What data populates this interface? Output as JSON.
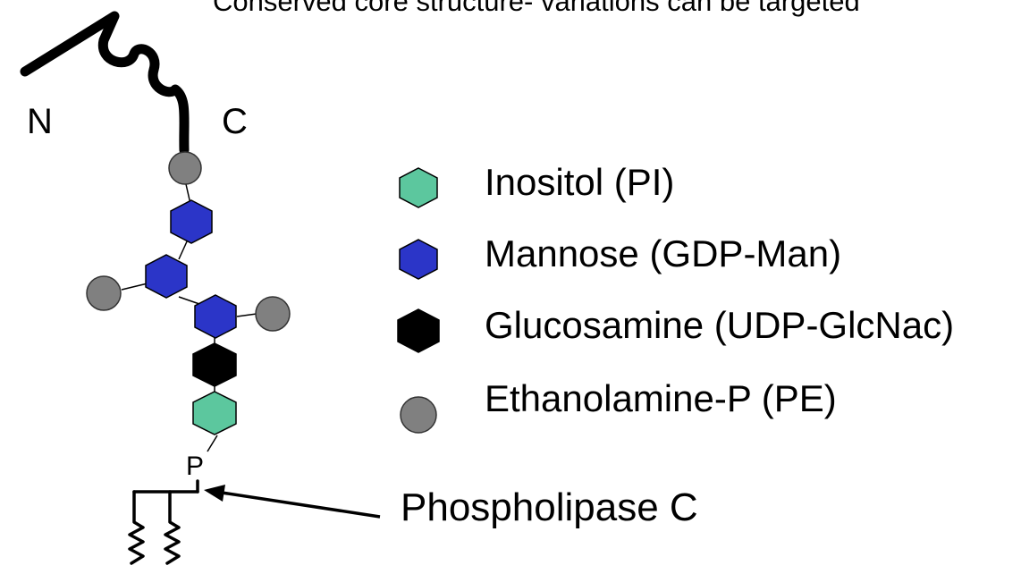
{
  "caption": "Conserved core structure- variations can be targeted",
  "termini": {
    "n": "N",
    "c": "C"
  },
  "phosphate_label": "P",
  "enzyme_label": "Phospholipase C",
  "legend": [
    {
      "label": "Inositol  (PI)",
      "shape": "hexagon",
      "color": "#5cc79e"
    },
    {
      "label": "Mannose (GDP-Man)",
      "shape": "hexagon",
      "color": "#2b35c8"
    },
    {
      "label": "Glucosamine (UDP-GlcNac)",
      "shape": "hexagon",
      "color": "#000000"
    },
    {
      "label": "Ethanolamine-P  (PE)",
      "shape": "circle",
      "color": "#808080"
    }
  ]
}
